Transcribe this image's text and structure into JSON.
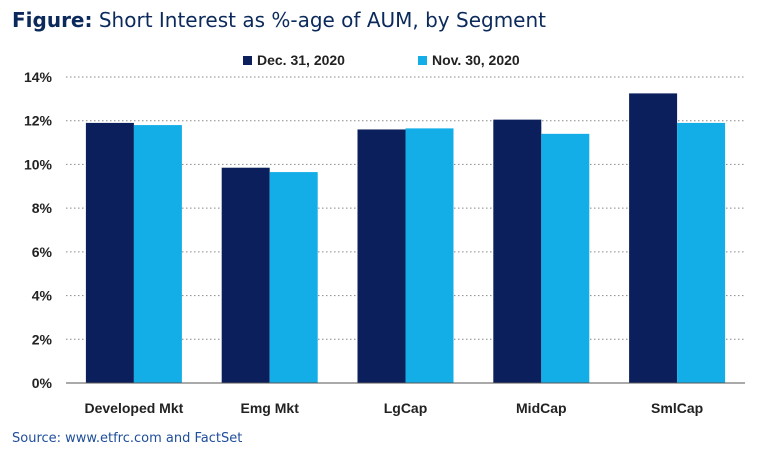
{
  "figure": {
    "title_prefix": "Figure:",
    "title_text": " Short Interest as %-age of AUM, by Segment",
    "source": "Source: www.etfrc.com and FactSet"
  },
  "colors": {
    "series_dark": "#0a1f5c",
    "series_light": "#13aee8",
    "grid": "#888888"
  },
  "chart_data": {
    "type": "bar",
    "title": "Short Interest as %-age of AUM, by Segment",
    "categories": [
      "Developed Mkt",
      "Emg Mkt",
      "LgCap",
      "MidCap",
      "SmlCap"
    ],
    "series": [
      {
        "name": "Dec. 31, 2020",
        "values": [
          11.9,
          9.85,
          11.6,
          12.05,
          13.25
        ]
      },
      {
        "name": "Nov. 30, 2020",
        "values": [
          11.8,
          9.65,
          11.65,
          11.4,
          11.9
        ]
      }
    ],
    "ylim": [
      0,
      14
    ],
    "yticks": [
      0,
      2,
      4,
      6,
      8,
      10,
      12,
      14
    ],
    "ytick_labels": [
      "0%",
      "2%",
      "4%",
      "6%",
      "8%",
      "10%",
      "12%",
      "14%"
    ],
    "grid": true,
    "legend_position": "top"
  }
}
